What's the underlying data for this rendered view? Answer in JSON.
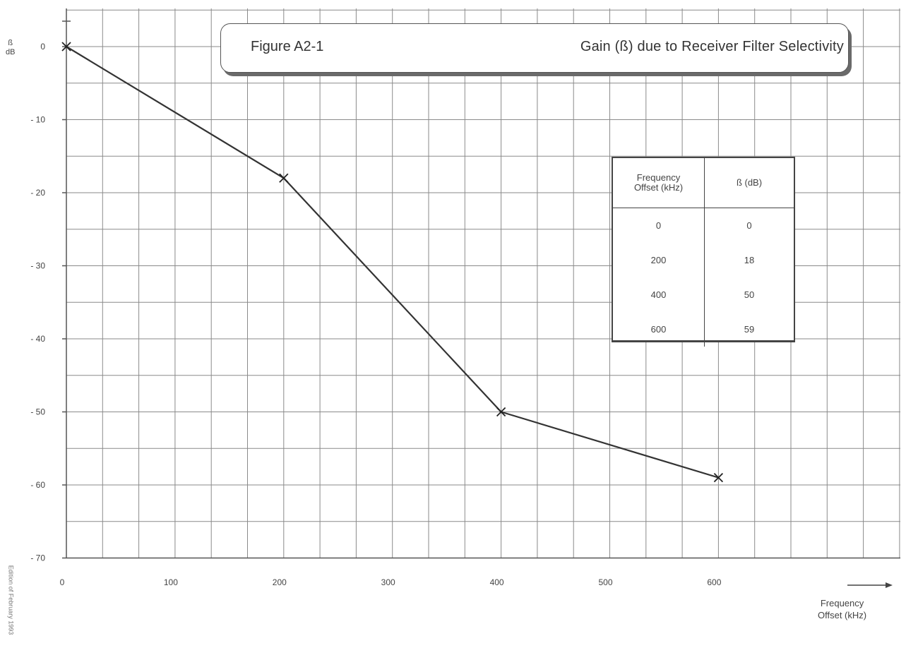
{
  "figure": {
    "label": "Figure A2-1",
    "title": "Gain (ß) due to Receiver Filter Selectivity"
  },
  "axes": {
    "y_title_line1": "ß",
    "y_title_line2": "dB",
    "x_title_line1": "Frequency",
    "x_title_line2": "Offset (kHz)"
  },
  "side_note": "Edition of February 1993",
  "table": {
    "header_col1_line1": "Frequency",
    "header_col1_line2": "Offset (kHz)",
    "header_col2": "ß (dB)",
    "rows": [
      {
        "offset": "0",
        "beta": "0"
      },
      {
        "offset": "200",
        "beta": "18"
      },
      {
        "offset": "400",
        "beta": "50"
      },
      {
        "offset": "600",
        "beta": "59"
      }
    ]
  },
  "chart_data": {
    "type": "line",
    "x": [
      0,
      200,
      400,
      600
    ],
    "y": [
      0,
      -18,
      -50,
      -59
    ],
    "marker": "x",
    "xlabel": "Frequency Offset (kHz)",
    "ylabel": "ß dB",
    "xlim": [
      0,
      750
    ],
    "ylim": [
      -70,
      0
    ],
    "xticks": [
      0,
      100,
      200,
      300,
      400,
      500,
      600
    ],
    "xtick_labels": [
      "0",
      "100",
      "200",
      "300",
      "400",
      "500",
      "600"
    ],
    "yticks": [
      0,
      -10,
      -20,
      -30,
      -40,
      -50,
      -60,
      -70
    ],
    "ytick_labels": [
      "0",
      "- 10",
      "- 20",
      "- 30",
      "- 40",
      "- 50",
      "- 60",
      "- 70"
    ],
    "grid": true,
    "line_color": "#333333",
    "grid_color": "#8a8a8a"
  }
}
